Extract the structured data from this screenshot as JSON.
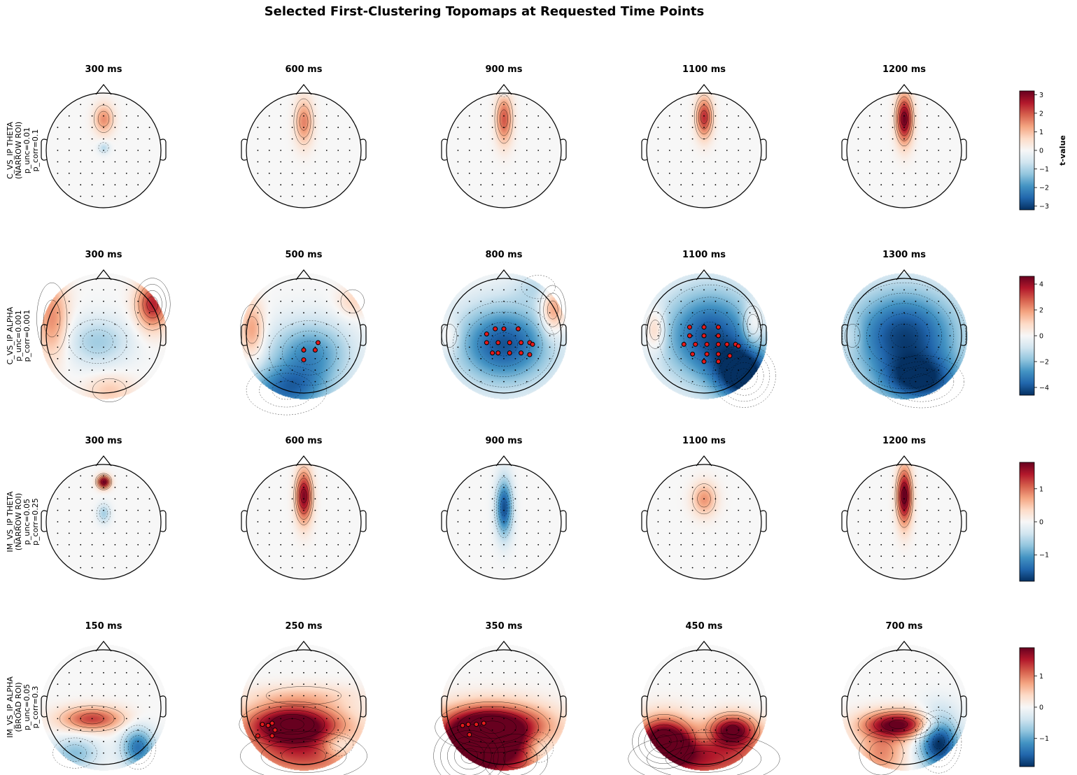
{
  "title": "Selected First-Clustering Topomaps at Requested Time Points",
  "colorbar_label": "t-value",
  "chart_data": {
    "type": "heatmap",
    "colormap": "RdBu_r",
    "colors": {
      "neg": "#053061",
      "mid": "#f7f7f7",
      "pos": "#67001f",
      "sig_sensor": "#e41a1c"
    },
    "rows": [
      {
        "label_lines": [
          "C_VS_IP THETA",
          "(NARROW ROI)",
          "p_unc=0.01",
          "p_corr=0.1"
        ],
        "clim": [
          -3.2,
          3.2
        ],
        "ticks": [
          -3,
          -2,
          -1,
          0,
          1,
          2,
          3
        ],
        "roi": "narrow",
        "panels": [
          {
            "time": "300 ms",
            "peaks": [
              {
                "x": 0,
                "y": 0.55,
                "a": 1.5,
                "sx": 0.12,
                "sy": 0.18
              },
              {
                "x": 0,
                "y": 0.05,
                "a": -0.9,
                "sx": 0.07,
                "sy": 0.07
              }
            ],
            "sig": []
          },
          {
            "time": "600 ms",
            "peaks": [
              {
                "x": 0,
                "y": 0.5,
                "a": 1.6,
                "sx": 0.11,
                "sy": 0.28
              }
            ],
            "sig": []
          },
          {
            "time": "900 ms",
            "peaks": [
              {
                "x": 0,
                "y": 0.55,
                "a": 2.0,
                "sx": 0.1,
                "sy": 0.3
              },
              {
                "x": 0,
                "y": 1.0,
                "a": -0.6,
                "sx": 0.06,
                "sy": 0.05
              }
            ],
            "sig": []
          },
          {
            "time": "1100 ms",
            "peaks": [
              {
                "x": 0,
                "y": 0.58,
                "a": 2.4,
                "sx": 0.1,
                "sy": 0.25
              }
            ],
            "sig": []
          },
          {
            "time": "1200 ms",
            "peaks": [
              {
                "x": 0,
                "y": 0.55,
                "a": 3.2,
                "sx": 0.1,
                "sy": 0.3
              }
            ],
            "sig": []
          }
        ]
      },
      {
        "label_lines": [
          "C_VS_IP ALPHA",
          "p_unc=0.001",
          "p_corr=0.001"
        ],
        "clim": [
          -4.6,
          4.6
        ],
        "ticks": [
          -4,
          -2,
          0,
          2,
          4
        ],
        "roi": "full",
        "panels": [
          {
            "time": "300 ms",
            "peaks": [
              {
                "x": 0.85,
                "y": 0.55,
                "a": 3.6,
                "sx": 0.2,
                "sy": 0.3
              },
              {
                "x": -0.9,
                "y": 0.3,
                "a": 2.2,
                "sx": 0.2,
                "sy": 0.5
              },
              {
                "x": -0.1,
                "y": -0.1,
                "a": -1.6,
                "sx": 0.4,
                "sy": 0.3
              },
              {
                "x": 0.1,
                "y": -0.95,
                "a": 1.2,
                "sx": 0.3,
                "sy": 0.2
              }
            ],
            "sig": []
          },
          {
            "time": "500 ms",
            "peaks": [
              {
                "x": 0.1,
                "y": -0.3,
                "a": -2.8,
                "sx": 0.5,
                "sy": 0.4
              },
              {
                "x": -0.3,
                "y": -0.95,
                "a": -3.2,
                "sx": 0.5,
                "sy": 0.3
              },
              {
                "x": -0.9,
                "y": 0.1,
                "a": 2.0,
                "sx": 0.15,
                "sy": 0.35
              },
              {
                "x": 0.85,
                "y": 0.6,
                "a": 1.0,
                "sx": 0.2,
                "sy": 0.2
              }
            ],
            "sig": [
              [
                0.25,
                -0.12
              ],
              [
                0.0,
                -0.25
              ],
              [
                0.2,
                -0.25
              ],
              [
                0.0,
                -0.42
              ]
            ]
          },
          {
            "time": "800 ms",
            "peaks": [
              {
                "x": 0.0,
                "y": -0.15,
                "a": -4.0,
                "sx": 0.6,
                "sy": 0.5
              },
              {
                "x": 0.85,
                "y": 0.45,
                "a": 2.5,
                "sx": 0.15,
                "sy": 0.3
              },
              {
                "x": -0.95,
                "y": 0.0,
                "a": 1.0,
                "sx": 0.12,
                "sy": 0.2
              },
              {
                "x": 0.6,
                "y": 0.85,
                "a": -1.0,
                "sx": 0.3,
                "sy": 0.2
              }
            ],
            "sig": [
              [
                -0.15,
                0.12
              ],
              [
                0.0,
                0.12
              ],
              [
                0.25,
                0.12
              ],
              [
                -0.3,
                0.03
              ],
              [
                -0.3,
                -0.12
              ],
              [
                -0.1,
                -0.12
              ],
              [
                0.1,
                -0.12
              ],
              [
                0.3,
                -0.12
              ],
              [
                0.45,
                -0.12
              ],
              [
                0.5,
                -0.15
              ],
              [
                -0.1,
                -0.3
              ],
              [
                0.1,
                -0.3
              ],
              [
                0.3,
                -0.3
              ],
              [
                0.45,
                -0.33
              ],
              [
                -0.2,
                -0.3
              ]
            ]
          },
          {
            "time": "1100 ms",
            "peaks": [
              {
                "x": 0.1,
                "y": 0.0,
                "a": -4.0,
                "sx": 0.6,
                "sy": 0.6
              },
              {
                "x": 0.7,
                "y": -0.7,
                "a": -4.6,
                "sx": 0.35,
                "sy": 0.35
              },
              {
                "x": -0.85,
                "y": 0.1,
                "a": 1.8,
                "sx": 0.12,
                "sy": 0.25
              },
              {
                "x": 0.85,
                "y": 0.2,
                "a": 1.6,
                "sx": 0.12,
                "sy": 0.25
              }
            ],
            "sig": [
              [
                -0.25,
                0.15
              ],
              [
                0.0,
                0.15
              ],
              [
                0.25,
                0.15
              ],
              [
                -0.25,
                0.0
              ],
              [
                0.0,
                0.0
              ],
              [
                0.25,
                0.0
              ],
              [
                -0.35,
                -0.15
              ],
              [
                -0.15,
                -0.15
              ],
              [
                0.05,
                -0.15
              ],
              [
                0.25,
                -0.15
              ],
              [
                0.4,
                -0.15
              ],
              [
                0.55,
                -0.15
              ],
              [
                0.6,
                -0.18
              ],
              [
                -0.2,
                -0.32
              ],
              [
                0.05,
                -0.32
              ],
              [
                0.25,
                -0.32
              ],
              [
                0.45,
                -0.35
              ],
              [
                0.0,
                -0.45
              ],
              [
                0.25,
                -0.45
              ]
            ]
          },
          {
            "time": "1300 ms",
            "peaks": [
              {
                "x": 0.0,
                "y": 0.0,
                "a": -4.3,
                "sx": 0.7,
                "sy": 0.6
              },
              {
                "x": 0.3,
                "y": -0.8,
                "a": -3.5,
                "sx": 0.5,
                "sy": 0.3
              },
              {
                "x": -0.9,
                "y": 0.0,
                "a": 0.6,
                "sx": 0.12,
                "sy": 0.2
              }
            ],
            "sig": []
          }
        ]
      },
      {
        "label_lines": [
          "IM_VS_IP THETA",
          "(NARROW ROI)",
          "p_unc=0.05",
          "p_corr=0.25"
        ],
        "clim": [
          -1.8,
          1.8
        ],
        "ticks": [
          -1,
          0,
          1
        ],
        "roi": "narrow",
        "panels": [
          {
            "time": "300 ms",
            "peaks": [
              {
                "x": 0,
                "y": 0.7,
                "a": 1.8,
                "sx": 0.08,
                "sy": 0.08
              },
              {
                "x": 0,
                "y": 0.15,
                "a": -0.6,
                "sx": 0.08,
                "sy": 0.12
              }
            ],
            "sig": []
          },
          {
            "time": "600 ms",
            "peaks": [
              {
                "x": 0,
                "y": 0.45,
                "a": 1.7,
                "sx": 0.1,
                "sy": 0.32
              }
            ],
            "sig": []
          },
          {
            "time": "900 ms",
            "peaks": [
              {
                "x": 0,
                "y": 0.25,
                "a": -1.6,
                "sx": 0.1,
                "sy": 0.35
              }
            ],
            "sig": []
          },
          {
            "time": "1100 ms",
            "peaks": [
              {
                "x": 0,
                "y": 0.4,
                "a": 0.8,
                "sx": 0.15,
                "sy": 0.2
              }
            ],
            "sig": []
          },
          {
            "time": "1200 ms",
            "peaks": [
              {
                "x": 0,
                "y": 0.45,
                "a": 1.9,
                "sx": 0.09,
                "sy": 0.35
              }
            ],
            "sig": []
          }
        ]
      },
      {
        "label_lines": [
          "IM_VS_IP ALPHA",
          "(BROAD ROI)",
          "p_unc=0.05",
          "p_corr=0.3"
        ],
        "clim": [
          -1.9,
          1.9
        ],
        "ticks": [
          -1,
          0,
          1
        ],
        "roi": "broad",
        "panels": [
          {
            "time": "150 ms",
            "peaks": [
              {
                "x": -0.2,
                "y": -0.2,
                "a": 1.3,
                "sx": 0.4,
                "sy": 0.15
              },
              {
                "x": 0.6,
                "y": -0.7,
                "a": -1.4,
                "sx": 0.2,
                "sy": 0.25
              },
              {
                "x": -0.5,
                "y": -0.8,
                "a": -0.8,
                "sx": 0.3,
                "sy": 0.2
              }
            ],
            "sig": []
          },
          {
            "time": "250 ms",
            "peaks": [
              {
                "x": -0.2,
                "y": -0.3,
                "a": 2.2,
                "sx": 0.6,
                "sy": 0.25
              },
              {
                "x": 0.0,
                "y": -0.85,
                "a": 1.2,
                "sx": 0.8,
                "sy": 0.3
              },
              {
                "x": 0.6,
                "y": -0.65,
                "a": -0.7,
                "sx": 0.2,
                "sy": 0.15
              },
              {
                "x": 0.0,
                "y": 0.2,
                "a": 0.4,
                "sx": 0.7,
                "sy": 0.15
              }
            ],
            "sig": [
              [
                -0.72,
                -0.3
              ],
              [
                -0.62,
                -0.32
              ],
              [
                -0.55,
                -0.28
              ],
              [
                -0.5,
                -0.4
              ],
              [
                -0.55,
                -0.5
              ],
              [
                -0.8,
                -0.5
              ]
            ]
          },
          {
            "time": "350 ms",
            "peaks": [
              {
                "x": -0.2,
                "y": -0.35,
                "a": 2.4,
                "sx": 0.65,
                "sy": 0.28
              },
              {
                "x": -0.6,
                "y": -0.85,
                "a": 2.0,
                "sx": 0.4,
                "sy": 0.35
              },
              {
                "x": 0.2,
                "y": -0.9,
                "a": 1.2,
                "sx": 0.4,
                "sy": 0.3
              },
              {
                "x": 0.6,
                "y": -0.7,
                "a": -0.6,
                "sx": 0.2,
                "sy": 0.2
              }
            ],
            "sig": [
              [
                -0.72,
                -0.32
              ],
              [
                -0.62,
                -0.3
              ],
              [
                -0.48,
                -0.3
              ],
              [
                -0.35,
                -0.28
              ],
              [
                -0.6,
                -0.48
              ]
            ]
          },
          {
            "time": "450 ms",
            "peaks": [
              {
                "x": -0.7,
                "y": -0.6,
                "a": 2.2,
                "sx": 0.35,
                "sy": 0.3
              },
              {
                "x": 0.5,
                "y": -0.4,
                "a": 1.8,
                "sx": 0.3,
                "sy": 0.2
              },
              {
                "x": 0.0,
                "y": -0.9,
                "a": 1.4,
                "sx": 0.9,
                "sy": 0.3
              },
              {
                "x": 0.0,
                "y": -0.5,
                "a": -0.3,
                "sx": 0.15,
                "sy": 0.1
              }
            ],
            "sig": []
          },
          {
            "time": "700 ms",
            "peaks": [
              {
                "x": -0.1,
                "y": -0.3,
                "a": 1.9,
                "sx": 0.45,
                "sy": 0.17
              },
              {
                "x": 0.6,
                "y": -0.6,
                "a": -2.0,
                "sx": 0.25,
                "sy": 0.35
              },
              {
                "x": -0.4,
                "y": -0.8,
                "a": 0.9,
                "sx": 0.3,
                "sy": 0.3
              }
            ],
            "sig": []
          }
        ]
      }
    ]
  }
}
